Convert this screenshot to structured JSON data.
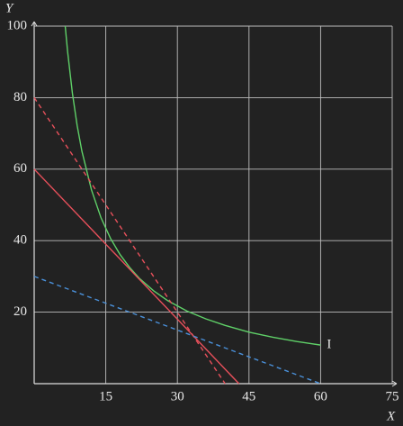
{
  "chart_data": {
    "type": "line",
    "x_label": "X",
    "y_label": "Y",
    "xlim": [
      0,
      75
    ],
    "ylim": [
      0,
      100
    ],
    "xticks": [
      15,
      30,
      45,
      60,
      75
    ],
    "yticks": [
      20,
      40,
      60,
      80,
      100
    ],
    "grid": true,
    "annotation": "I",
    "series": [
      {
        "color": "#5fd068",
        "dashed": false,
        "x": [
          6.5,
          7,
          8,
          9,
          10,
          12,
          14,
          16,
          18,
          20,
          22,
          25,
          28,
          32,
          36,
          40,
          45,
          50,
          55,
          60
        ],
        "values": [
          100,
          92.9,
          81.3,
          72.2,
          65,
          54.2,
          46.4,
          40.6,
          36.1,
          32.5,
          29.5,
          26,
          23.2,
          20.3,
          18.1,
          16.3,
          14.4,
          13,
          11.8,
          10.8
        ]
      },
      {
        "color": "#e8505b",
        "dashed": false,
        "x": [
          0,
          42.9
        ],
        "values": [
          60,
          0
        ]
      },
      {
        "color": "#e8505b",
        "dashed": true,
        "x": [
          0,
          40
        ],
        "values": [
          80,
          0
        ]
      },
      {
        "color": "#4a90d9",
        "dashed": true,
        "x": [
          0,
          60
        ],
        "values": [
          30,
          0
        ]
      }
    ]
  }
}
